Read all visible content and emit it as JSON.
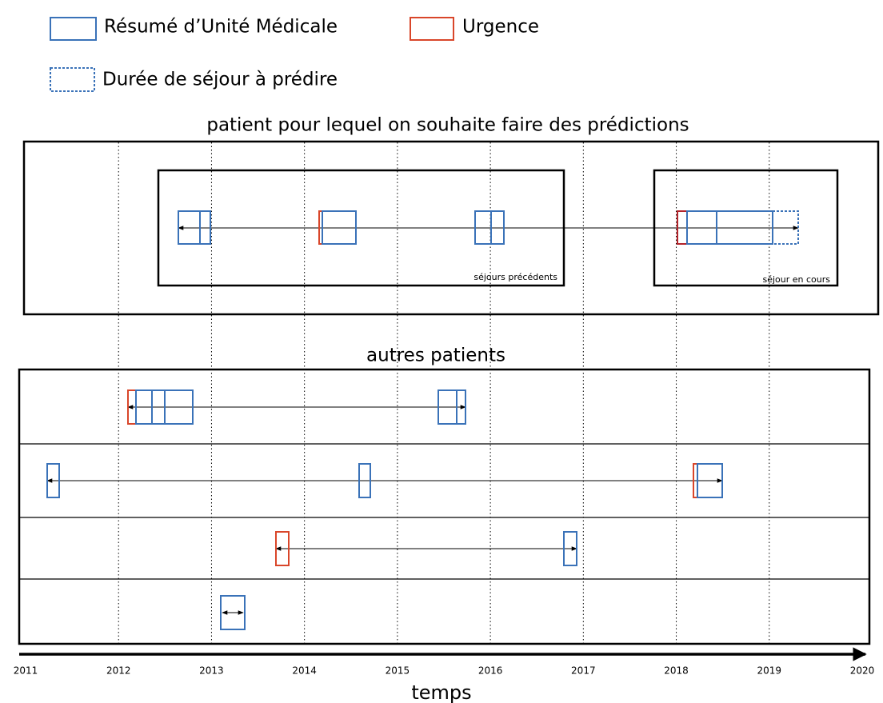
{
  "legend": {
    "items": [
      "Résumé d’Unité Médicale",
      "Urgence",
      "Durée de séjour à prédire"
    ]
  },
  "panels": [
    {
      "title": "patient pour lequel on souhaite faire des prédictions",
      "boxes": [
        "séjours précédents",
        "séjour en cours"
      ]
    },
    {
      "title": "autres patients"
    }
  ],
  "axis": {
    "label": "temps",
    "years": [
      "2011",
      "2012",
      "2013",
      "2014",
      "2015",
      "2016",
      "2017",
      "2018",
      "2019",
      "2020"
    ]
  }
}
